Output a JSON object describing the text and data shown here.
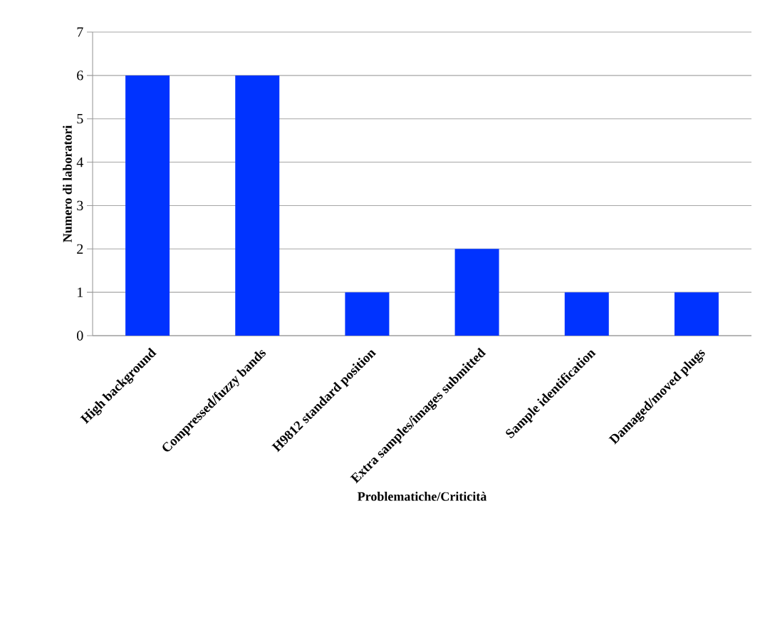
{
  "chart_data": {
    "type": "bar",
    "categories": [
      "High background",
      "Compressed/fuzzy bands",
      "H9812 standard position",
      "Extra samples/images submitted",
      "Sample identification",
      "Damaged/moved plugs"
    ],
    "values": [
      6,
      6,
      1,
      2,
      1,
      1
    ],
    "color": "#0033ff",
    "xlabel": "Problematiche/Criticità",
    "ylabel": "Numero di laboratori",
    "ylim": [
      0,
      7
    ],
    "yticks": [
      0,
      1,
      2,
      3,
      4,
      5,
      6,
      7
    ],
    "grid": "y"
  }
}
